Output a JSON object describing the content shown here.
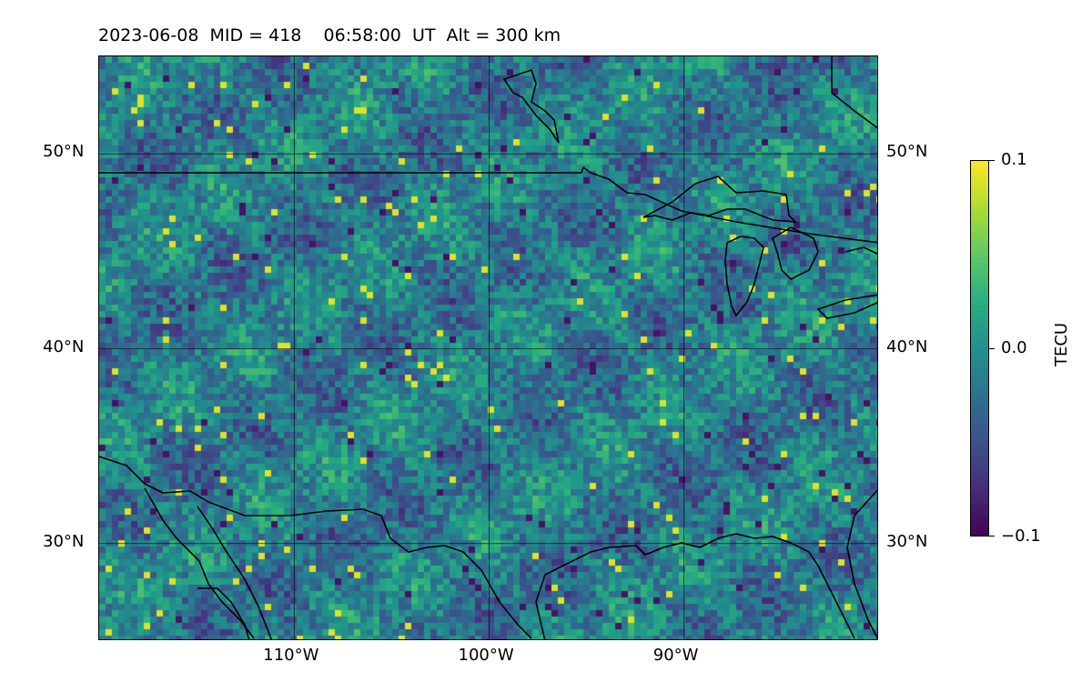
{
  "title": "2023-06-08  MID = 418    06:58:00  UT  Alt = 300 km",
  "map": {
    "lon_range": [
      -120,
      -80
    ],
    "lat_range": [
      25,
      55
    ],
    "grid_lons": [
      -110,
      -100,
      -90
    ],
    "grid_lats": [
      30,
      40,
      50
    ],
    "lon_labels": [
      "110°W",
      "100°W",
      "90°W"
    ],
    "lat_labels": [
      "30°N",
      "40°N",
      "50°N"
    ]
  },
  "colorbar": {
    "label": "TECU",
    "vmin": -0.1,
    "vmax": 0.1,
    "ticks": [
      "0.1",
      "0.0",
      "−0.1"
    ],
    "colormap": "viridis"
  }
}
